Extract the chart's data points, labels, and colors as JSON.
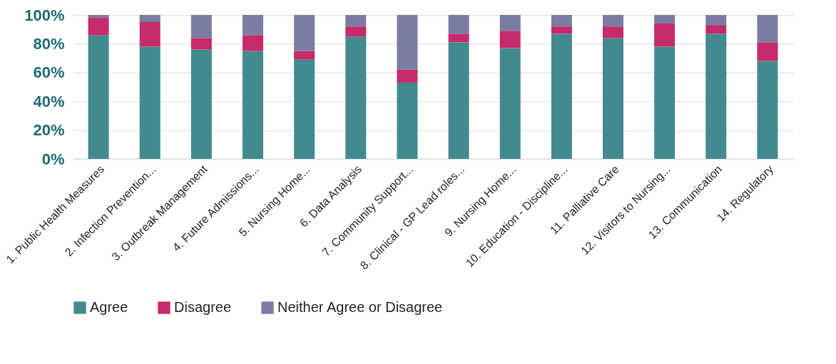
{
  "chart_data": {
    "type": "bar",
    "stacked": true,
    "categories": [
      "1. Public Health Measures",
      "2. Infection Prevention...",
      "3. Outbreak Management",
      "4. Future Admissions...",
      "5. Nursing Home...",
      "6. Data Analysis",
      "7. Community Support...",
      "8. Clinical - GP Lead roles...",
      "9. Nursing Home...",
      "10. Education - Discipline...",
      "11. Palliative Care",
      "12. Visitors to Nursing...",
      "13. Communication",
      "14. Regulatory"
    ],
    "series": [
      {
        "name": "Agree",
        "color": "#428a8f",
        "values": [
          86,
          78,
          76,
          75,
          69,
          85,
          53,
          81,
          77,
          87,
          84,
          78,
          87,
          68
        ]
      },
      {
        "name": "Disagree",
        "color": "#c52a6a",
        "values": [
          12,
          17,
          8,
          11,
          6,
          7,
          9,
          6,
          12,
          5,
          8,
          16,
          6,
          13
        ]
      },
      {
        "name": "Neither Agree or Disagree",
        "color": "#7b7ca3",
        "values": [
          2,
          5,
          16,
          14,
          25,
          8,
          38,
          13,
          11,
          8,
          8,
          6,
          7,
          19
        ]
      }
    ],
    "ylim": [
      0,
      100
    ],
    "yticks": [
      {
        "value": 0,
        "label": "0%"
      },
      {
        "value": 20,
        "label": "20%"
      },
      {
        "value": 40,
        "label": "40%"
      },
      {
        "value": 60,
        "label": "60%"
      },
      {
        "value": 80,
        "label": "80%"
      },
      {
        "value": 100,
        "label": "100%"
      }
    ],
    "grid": "y",
    "legend": "bottom"
  }
}
